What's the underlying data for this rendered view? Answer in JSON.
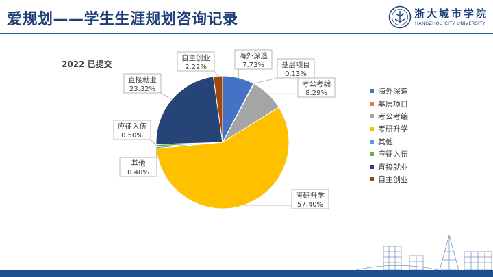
{
  "header": {
    "title": "爱规划——学生生涯规划咨询记录",
    "logo": {
      "name": "浙大城市学院",
      "subtitle": "HANGZHOU CITY UNIVERSITY",
      "icon": "university-crest-icon"
    }
  },
  "colors": {
    "title": "#1f3f7a",
    "footer_bar": "#1f4e8c"
  },
  "chart_data": {
    "type": "pie",
    "title": "2022 已提交",
    "label_format": "{name}\n{value}%",
    "slices": [
      {
        "name": "海外深造",
        "value": 7.73,
        "label": "7.73%",
        "color": "#4472c4"
      },
      {
        "name": "基层项目",
        "value": 0.13,
        "label": "0.13%",
        "color": "#ed7d31"
      },
      {
        "name": "考公考编",
        "value": 8.29,
        "label": "8.29%",
        "color": "#a5a5a5"
      },
      {
        "name": "考研升学",
        "value": 57.4,
        "label": "57.40%",
        "color": "#ffc000"
      },
      {
        "name": "其他",
        "value": 0.4,
        "label": "0.40%",
        "color": "#5b9bd5"
      },
      {
        "name": "应征入伍",
        "value": 0.5,
        "label": "0.50%",
        "color": "#70ad47"
      },
      {
        "name": "直接就业",
        "value": 23.32,
        "label": "23.32%",
        "color": "#264478"
      },
      {
        "name": "自主创业",
        "value": 2.22,
        "label": "2.22%",
        "color": "#9e480e"
      }
    ],
    "legend": [
      "海外深造",
      "基层项目",
      "考公考编",
      "考研升学",
      "其他",
      "应征入伍",
      "直接就业",
      "自主创业"
    ],
    "legend_position": "right",
    "start_angle": "top",
    "direction": "clockwise"
  }
}
